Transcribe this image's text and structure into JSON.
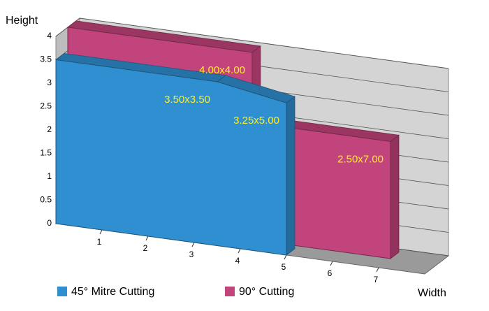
{
  "chart_data": {
    "type": "area3d",
    "y_label": "Height",
    "x_label": "Width",
    "xlim": [
      0,
      8
    ],
    "xticks": [
      1,
      2,
      3,
      4,
      5,
      6,
      7
    ],
    "ylim": [
      0,
      4
    ],
    "yticks": [
      0,
      0.5,
      1,
      1.5,
      2,
      2.5,
      3,
      3.5,
      4
    ],
    "grid": true,
    "series": [
      {
        "name": "45° Mitre Cutting",
        "color": "#2f8fd0",
        "x": [
          0,
          3.5,
          5
        ],
        "values": [
          3.5,
          3.5,
          3.25
        ]
      },
      {
        "name": "90° Cutting",
        "color": "#c2447c",
        "x": [
          0,
          4,
          4,
          7
        ],
        "values": [
          4,
          4,
          2.5,
          2.5
        ]
      }
    ],
    "annotations": [
      {
        "text": "4.00x4.00",
        "x": 4,
        "y": 4,
        "series": 1
      },
      {
        "text": "3.50x3.50",
        "x": 3.5,
        "y": 3.5,
        "series": 0
      },
      {
        "text": "3.25x5.00",
        "x": 5,
        "y": 3.25,
        "series": 0
      },
      {
        "text": "2.50x7.00",
        "x": 7,
        "y": 2.5,
        "series": 1
      }
    ]
  }
}
